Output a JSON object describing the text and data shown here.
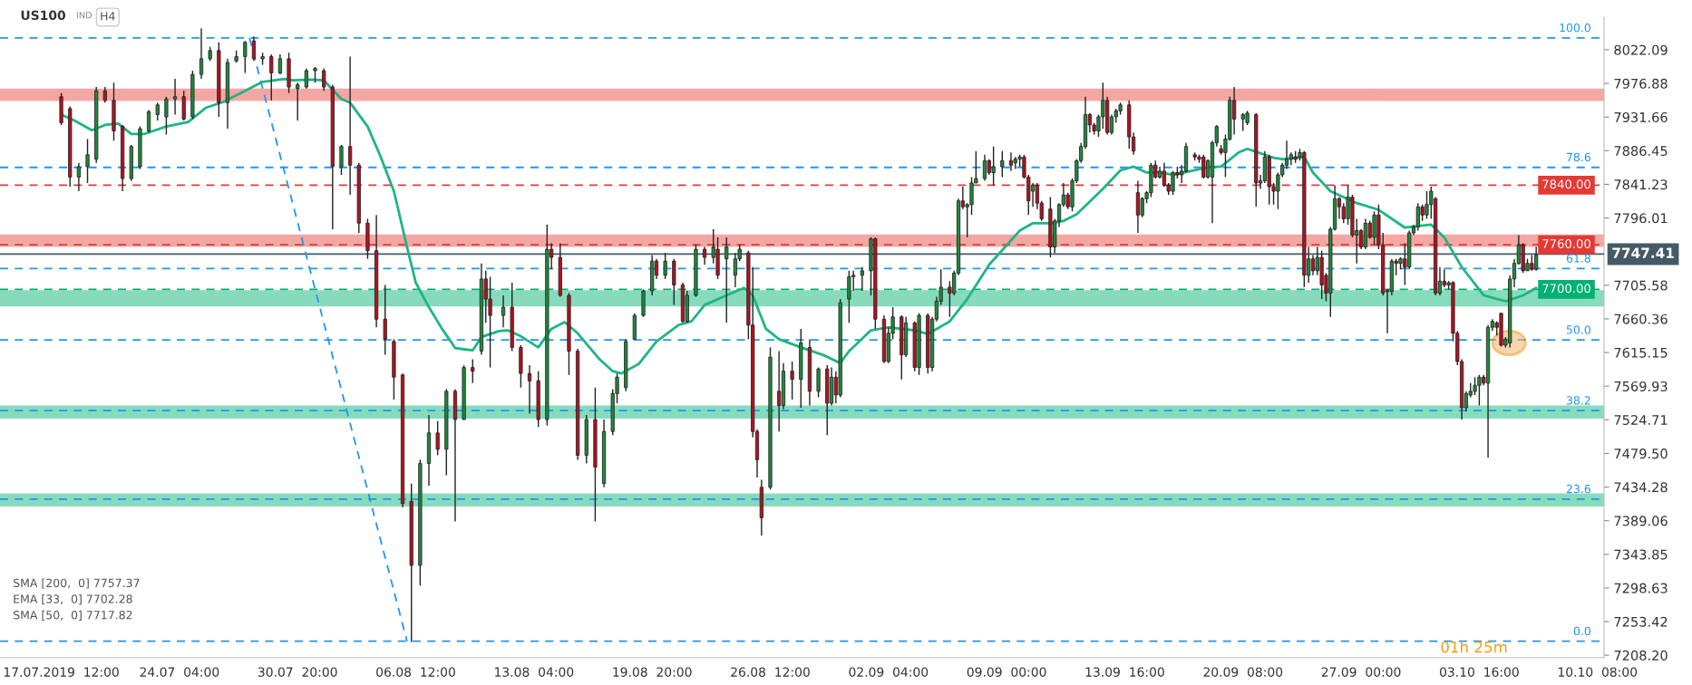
{
  "chart_data": {
    "type": "candlestick",
    "title": "US100",
    "subtitle": "IND",
    "annotations": [
      "SMA [200,  0] 7757.37",
      "EMA [33,  0] 7702.28",
      "SMA [50,  0] 7717.82",
      "H4",
      "01h 25m",
      {
        "text": "100.0",
        "y": 8038
      },
      {
        "text": "78.6",
        "y": 7864
      },
      {
        "text": "61.8",
        "y": 7728
      },
      {
        "text": "50.0",
        "y": 7632
      },
      {
        "text": "38.2",
        "y": 7537
      },
      {
        "text": "23.6",
        "y": 7418
      },
      {
        "text": "0.0",
        "y": 7227
      }
    ],
    "categories": [
      "17.07.2019  12:00",
      null,
      null,
      null,
      null,
      null,
      null,
      null,
      null,
      null,
      null,
      null,
      null,
      null,
      null,
      null,
      null,
      null,
      null,
      null,
      null,
      null,
      null,
      null,
      null,
      null,
      null,
      "24.07  04:00",
      null,
      null,
      null,
      null,
      null,
      null,
      null,
      null,
      null,
      null,
      null,
      null,
      null,
      null,
      null,
      null,
      null,
      null,
      null,
      null,
      null,
      null,
      null,
      null,
      null,
      null,
      "30.07  20:00",
      null,
      null,
      null,
      null,
      null,
      null,
      null,
      null,
      null,
      null,
      null,
      null,
      null,
      null,
      null,
      null,
      null,
      null,
      null,
      null,
      null,
      null,
      null,
      null,
      null,
      null,
      "06.08  12:00",
      null,
      null,
      null,
      null,
      null,
      null,
      null,
      null,
      null,
      null,
      null,
      null,
      null,
      null,
      null,
      null,
      null,
      null,
      null,
      null,
      null,
      null,
      null,
      null,
      null,
      null,
      "13.08  04:00",
      null,
      null,
      null,
      null,
      null,
      null,
      null,
      null,
      null,
      null,
      null,
      null,
      null,
      null,
      null,
      null,
      null,
      null,
      null,
      null,
      null,
      null,
      null,
      null,
      null,
      null,
      "19.08  20:00",
      null,
      null,
      null,
      null,
      null,
      null,
      null,
      null,
      null,
      null,
      null,
      null,
      null,
      null,
      null,
      null,
      null,
      null,
      null,
      null,
      null,
      null,
      null,
      null,
      null,
      null,
      "26.08  12:00",
      null,
      null,
      null,
      null,
      null,
      null,
      null,
      null,
      null,
      null,
      null,
      null,
      null,
      null,
      null,
      null,
      null,
      null,
      null,
      null,
      null,
      null,
      null,
      null,
      null,
      null,
      "02.09  04:00",
      null,
      null,
      null,
      null,
      null,
      null,
      null,
      null,
      null,
      null,
      null,
      null,
      null,
      null,
      null,
      null,
      null,
      null,
      null,
      null,
      null,
      null,
      null,
      null,
      null,
      null,
      "09.09  00:00",
      null,
      null,
      null,
      null,
      null,
      null,
      null,
      null,
      null,
      null,
      null,
      null,
      null,
      null,
      null,
      null,
      null,
      null,
      null,
      null,
      null,
      null,
      null,
      null,
      null,
      null,
      "13.09  16:00",
      null,
      null,
      null,
      null,
      null,
      null,
      null,
      null,
      null,
      null,
      null,
      null,
      null,
      null,
      null,
      null,
      null,
      null,
      null,
      null,
      null,
      null,
      null,
      null,
      null,
      null,
      "20.09  08:00",
      null,
      null,
      null,
      null,
      null,
      null,
      null,
      null,
      null,
      null,
      null,
      null,
      null,
      null,
      null,
      null,
      null,
      null,
      null,
      null,
      null,
      null,
      null,
      null,
      null,
      null,
      "27.09  00:00",
      null,
      null,
      null,
      null,
      null,
      null,
      null,
      null,
      null,
      null,
      null,
      null,
      null,
      null,
      null,
      null,
      null,
      null,
      null,
      null,
      null,
      null,
      null,
      null,
      null,
      null,
      "03.10  16:00",
      null,
      null,
      null,
      null,
      null,
      null,
      null,
      null,
      null,
      null,
      null,
      null,
      null,
      null,
      null,
      null,
      null,
      null,
      null,
      null,
      null,
      null,
      null,
      null,
      null,
      null,
      "10.10  08:00",
      null
    ],
    "ohlc": [
      [
        7959,
        7964,
        7921,
        7924
      ],
      null,
      [
        7943,
        7946,
        7838,
        7851
      ],
      null,
      [
        7851,
        7870,
        7832,
        7865
      ],
      null,
      [
        7865,
        7902,
        7843,
        7881
      ],
      null,
      [
        7875,
        7972,
        7870,
        7967
      ],
      null,
      [
        7967,
        7972,
        7951,
        7954
      ],
      null,
      [
        7954,
        7978,
        7900,
        7913
      ],
      null,
      [
        7919,
        7921,
        7832,
        7849
      ],
      null,
      [
        7849,
        7894,
        7846,
        7892
      ],
      null,
      [
        7865,
        7919,
        7862,
        7916
      ],
      null,
      [
        7913,
        7941,
        7911,
        7939
      ],
      null,
      [
        7935,
        7951,
        7927,
        7948
      ],
      null,
      [
        7932,
        7959,
        7908,
        7956
      ],
      null,
      [
        7956,
        7983,
        7935,
        7959
      ],
      null,
      [
        7959,
        7967,
        7927,
        7929
      ],
      null,
      [
        7932,
        7994,
        7929,
        7989
      ],
      null,
      [
        7989,
        8051,
        7983,
        8010
      ],
      null,
      [
        8010,
        8026,
        8007,
        8021
      ],
      null,
      [
        8021,
        8032,
        7932,
        7951
      ],
      null,
      [
        7951,
        8010,
        7916,
        8005
      ],
      null,
      [
        8007,
        8021,
        8005,
        8013
      ],
      null,
      [
        8013,
        8034,
        7991,
        8032
      ],
      null,
      [
        8034,
        8040,
        8007,
        8010
      ],
      null,
      [
        8010,
        8018,
        8002,
        8013
      ],
      null,
      [
        8013,
        8016,
        7954,
        7991
      ],
      null,
      [
        7991,
        8016,
        7989,
        8010
      ],
      null,
      [
        8010,
        8018,
        7964,
        7972
      ],
      null,
      [
        7970,
        7978,
        7927,
        7975
      ],
      null,
      [
        7972,
        7997,
        7970,
        7994
      ],
      null,
      [
        7994,
        7999,
        7978,
        7997
      ],
      null,
      [
        7994,
        7997,
        7967,
        7972
      ],
      null,
      [
        7972,
        7975,
        7781,
        7865
      ],
      null,
      [
        7865,
        7894,
        7854,
        7892
      ],
      null,
      [
        7892,
        8013,
        7827,
        7867
      ],
      null,
      [
        7867,
        7870,
        7776,
        7789
      ],
      null,
      [
        7789,
        7795,
        7741,
        7752
      ],
      null,
      [
        7752,
        7800,
        7649,
        7660
      ],
      null,
      [
        7660,
        7706,
        7612,
        7633
      ],
      null,
      [
        7630,
        7633,
        7552,
        7582
      ],
      null,
      [
        7585,
        7587,
        7407,
        7412
      ],
      null,
      [
        7415,
        7439,
        7226,
        7329
      ],
      null,
      [
        7329,
        7471,
        7302,
        7466
      ],
      null,
      [
        7466,
        7531,
        7436,
        7507
      ],
      null,
      [
        7507,
        7523,
        7477,
        7485
      ],
      null,
      [
        7485,
        7566,
        7450,
        7563
      ],
      null,
      [
        7563,
        7566,
        7388,
        7525
      ],
      null,
      [
        7525,
        7598,
        7525,
        7595
      ],
      null,
      [
        7595,
        7606,
        7574,
        7590
      ],
      null,
      [
        7617,
        7735,
        7612,
        7714
      ],
      [
        7714,
        7725,
        7655,
        7687
      ],
      [
        7687,
        7717,
        7595,
        7665
      ],
      null,
      null,
      [
        7665,
        7692,
        7649,
        7676
      ],
      null,
      [
        7676,
        7709,
        7617,
        7622
      ],
      null,
      [
        7622,
        7625,
        7568,
        7587
      ],
      null,
      [
        7587,
        7598,
        7533,
        7577
      ],
      null,
      [
        7577,
        7590,
        7515,
        7525
      ],
      null,
      [
        7525,
        7787,
        7517,
        7754
      ],
      [
        7754,
        7762,
        7727,
        7743
      ],
      null,
      [
        7743,
        7762,
        7690,
        7692
      ],
      null,
      [
        7692,
        7695,
        7585,
        7617
      ],
      null,
      [
        7617,
        7620,
        7471,
        7477
      ],
      null,
      [
        7477,
        7531,
        7466,
        7525
      ],
      null,
      [
        7525,
        7568,
        7388,
        7461
      ],
      null,
      [
        7439,
        7525,
        7434,
        7509
      ],
      null,
      [
        7509,
        7566,
        7504,
        7560
      ],
      [
        7560,
        7587,
        7547,
        7582
      ],
      null,
      [
        7568,
        7633,
        7563,
        7630
      ],
      null,
      [
        7633,
        7668,
        7633,
        7665
      ],
      null,
      [
        7665,
        7700,
        7663,
        7698
      ],
      null,
      [
        7698,
        7746,
        7692,
        7738
      ],
      [
        7738,
        7741,
        7714,
        7719
      ],
      null,
      [
        7719,
        7749,
        7714,
        7738
      ],
      null,
      [
        7738,
        7741,
        7679,
        7706
      ],
      null,
      [
        7706,
        7709,
        7655,
        7657
      ],
      [
        7657,
        7698,
        7655,
        7692
      ],
      null,
      [
        7692,
        7760,
        7690,
        7754
      ],
      null,
      [
        7754,
        7757,
        7733,
        7743
      ],
      null,
      [
        7743,
        7781,
        7735,
        7757
      ],
      [
        7754,
        7770,
        7714,
        7719
      ],
      null,
      [
        7741,
        7770,
        7655,
        7757
      ],
      null,
      [
        7719,
        7749,
        7703,
        7741
      ],
      [
        7741,
        7760,
        7738,
        7754
      ],
      null,
      [
        7749,
        7752,
        7633,
        7652
      ],
      [
        7652,
        7730,
        7501,
        7509
      ],
      [
        7509,
        7512,
        7447,
        7471
      ],
      [
        7434,
        7444,
        7369,
        7393
      ],
      null,
      [
        7434,
        7622,
        7431,
        7609
      ],
      null,
      [
        7563,
        7617,
        7509,
        7544
      ],
      [
        7544,
        7601,
        7539,
        7590
      ],
      null,
      [
        7590,
        7603,
        7552,
        7579
      ],
      null,
      [
        7579,
        7647,
        7541,
        7628
      ],
      null,
      [
        7622,
        7633,
        7544,
        7563
      ],
      null,
      [
        7563,
        7595,
        7555,
        7593
      ],
      null,
      [
        7593,
        7598,
        7504,
        7547
      ],
      [
        7547,
        7595,
        7544,
        7582
      ],
      [
        7582,
        7590,
        7547,
        7558
      ],
      [
        7558,
        7687,
        7555,
        7682
      ],
      null,
      [
        7687,
        7725,
        7655,
        7717
      ],
      [
        7717,
        7725,
        7698,
        7719
      ],
      null,
      [
        7719,
        7730,
        7698,
        7725
      ],
      null,
      [
        7725,
        7770,
        7692,
        7768
      ],
      [
        7768,
        7770,
        7647,
        7660
      ],
      null,
      [
        7660,
        7665,
        7601,
        7603
      ],
      [
        7603,
        7649,
        7601,
        7641
      ],
      [
        7641,
        7676,
        7633,
        7663
      ],
      null,
      [
        7663,
        7665,
        7579,
        7612
      ],
      [
        7612,
        7663,
        7609,
        7655
      ],
      null,
      [
        7655,
        7657,
        7590,
        7595
      ],
      [
        7595,
        7668,
        7585,
        7665
      ],
      null,
      [
        7665,
        7668,
        7587,
        7595
      ],
      [
        7595,
        7663,
        7590,
        7660
      ],
      [
        7660,
        7690,
        7657,
        7684
      ],
      [
        7684,
        7727,
        7679,
        7703
      ],
      null,
      [
        7703,
        7711,
        7663,
        7695
      ],
      [
        7695,
        7725,
        7692,
        7722
      ],
      [
        7722,
        7822,
        7719,
        7819
      ],
      [
        7819,
        7838,
        7808,
        7811
      ],
      [
        7811,
        7816,
        7770,
        7814
      ],
      [
        7814,
        7851,
        7800,
        7843
      ],
      [
        7843,
        7886,
        7843,
        7849
      ],
      null,
      [
        7849,
        7881,
        7846,
        7873
      ],
      [
        7873,
        7875,
        7854,
        7857
      ],
      [
        7857,
        7892,
        7840,
        7865
      ],
      null,
      [
        7865,
        7886,
        7851,
        7873
      ],
      null,
      [
        7873,
        7884,
        7859,
        7867
      ],
      [
        7870,
        7878,
        7862,
        7875
      ],
      [
        7875,
        7881,
        7865,
        7878
      ],
      [
        7878,
        7881,
        7849,
        7851
      ],
      [
        7851,
        7854,
        7800,
        7819
      ],
      [
        7832,
        7843,
        7811,
        7840
      ],
      [
        7840,
        7843,
        7808,
        7816
      ],
      [
        7816,
        7819,
        7792,
        7795
      ],
      null,
      [
        7808,
        7824,
        7743,
        7757
      ],
      [
        7757,
        7795,
        7749,
        7792
      ],
      [
        7792,
        7816,
        7784,
        7814
      ],
      [
        7814,
        7843,
        7811,
        7827
      ],
      [
        7827,
        7830,
        7808,
        7811
      ],
      [
        7811,
        7849,
        7805,
        7846
      ],
      [
        7846,
        7875,
        7843,
        7873
      ],
      [
        7873,
        7897,
        7870,
        7892
      ],
      [
        7892,
        7959,
        7889,
        7935
      ],
      [
        7935,
        7937,
        7911,
        7921
      ],
      [
        7921,
        7924,
        7908,
        7913
      ],
      [
        7913,
        7935,
        7905,
        7932
      ],
      [
        7932,
        7978,
        7916,
        7954
      ],
      [
        7954,
        7959,
        7908,
        7911
      ],
      [
        7911,
        7935,
        7908,
        7932
      ],
      [
        7932,
        7943,
        7924,
        7940
      ],
      [
        7940,
        7951,
        7935,
        7948
      ],
      null,
      [
        7948,
        7954,
        7889,
        7905
      ],
      [
        7905,
        7911,
        7881,
        7886
      ],
      [
        7830,
        7846,
        7776,
        7800
      ],
      [
        7800,
        7824,
        7797,
        7822
      ],
      [
        7822,
        7832,
        7816,
        7830
      ],
      [
        7830,
        7870,
        7824,
        7867
      ],
      [
        7867,
        7873,
        7849,
        7851
      ],
      [
        7851,
        7865,
        7849,
        7859
      ],
      [
        7859,
        7870,
        7838,
        7840
      ],
      [
        7840,
        7843,
        7827,
        7832
      ],
      [
        7832,
        7859,
        7827,
        7857
      ],
      [
        7857,
        7865,
        7849,
        7854
      ],
      [
        7854,
        7867,
        7843,
        7859
      ],
      [
        7859,
        7897,
        7857,
        7892
      ],
      null,
      [
        7881,
        7884,
        7873,
        7878
      ],
      [
        7878,
        7881,
        7870,
        7875
      ],
      [
        7878,
        7881,
        7849,
        7851
      ],
      [
        7851,
        7875,
        7849,
        7873
      ],
      [
        7851,
        7900,
        7789,
        7897
      ],
      [
        7897,
        7921,
        7892,
        7919
      ],
      [
        7889,
        7894,
        7881,
        7884
      ],
      [
        7884,
        7908,
        7851,
        7902
      ],
      [
        7902,
        7959,
        7900,
        7954
      ],
      [
        7954,
        7972,
        7908,
        7929
      ],
      null,
      [
        7929,
        7937,
        7913,
        7935
      ],
      [
        7924,
        7940,
        7921,
        7937
      ],
      null,
      [
        7935,
        7937,
        7811,
        7843
      ],
      [
        7843,
        7854,
        7835,
        7846
      ],
      [
        7846,
        7886,
        7843,
        7878
      ],
      [
        7878,
        7881,
        7814,
        7838
      ],
      [
        7838,
        7843,
        7814,
        7832
      ],
      [
        7832,
        7857,
        7808,
        7854
      ],
      [
        7854,
        7870,
        7851,
        7867
      ],
      [
        7867,
        7900,
        7862,
        7875
      ],
      [
        7875,
        7884,
        7867,
        7881
      ],
      [
        7878,
        7886,
        7870,
        7875
      ],
      [
        7878,
        7889,
        7873,
        7884
      ],
      [
        7884,
        7886,
        7703,
        7719
      ],
      [
        7719,
        7757,
        7709,
        7741
      ],
      [
        7741,
        7746,
        7719,
        7725
      ],
      [
        7725,
        7757,
        7719,
        7743
      ],
      [
        7743,
        7752,
        7687,
        7706
      ],
      [
        7719,
        7722,
        7684,
        7695
      ],
      [
        7695,
        7784,
        7663,
        7781
      ],
      [
        7781,
        7840,
        7779,
        7822
      ],
      [
        7822,
        7824,
        7795,
        7811
      ],
      [
        7811,
        7816,
        7789,
        7795
      ],
      [
        7795,
        7840,
        7787,
        7824
      ],
      [
        7824,
        7827,
        7770,
        7773
      ],
      [
        7773,
        7795,
        7735,
        7779
      ],
      [
        7779,
        7781,
        7754,
        7757
      ],
      [
        7757,
        7795,
        7754,
        7789
      ],
      [
        7789,
        7792,
        7768,
        7770
      ],
      [
        7770,
        7805,
        7760,
        7800
      ],
      [
        7800,
        7814,
        7754,
        7760
      ],
      [
        7760,
        7776,
        7692,
        7695
      ],
      [
        7699,
        7700,
        7641,
        7697
      ],
      [
        7697,
        7741,
        7692,
        7738
      ],
      [
        7738,
        7741,
        7719,
        7735
      ],
      [
        7735,
        7743,
        7727,
        7741
      ],
      [
        7741,
        7762,
        7706,
        7730
      ],
      [
        7730,
        7779,
        7727,
        7776
      ],
      [
        7776,
        7787,
        7773,
        7784
      ],
      [
        7784,
        7816,
        7779,
        7811
      ],
      [
        7811,
        7814,
        7792,
        7800
      ],
      [
        7800,
        7832,
        7795,
        7814
      ],
      [
        7814,
        7838,
        7795,
        7832
      ],
      [
        7822,
        7824,
        7692,
        7695
      ],
      [
        7695,
        7730,
        7692,
        7711
      ],
      [
        7711,
        7727,
        7703,
        7706
      ],
      [
        7706,
        7711,
        7700,
        7709
      ],
      [
        7709,
        7711,
        7630,
        7641
      ],
      [
        7641,
        7644,
        7598,
        7603
      ],
      [
        7603,
        7606,
        7525,
        7541
      ],
      [
        7541,
        7563,
        7536,
        7560
      ],
      [
        7558,
        7574,
        7555,
        7563
      ],
      [
        7563,
        7582,
        7558,
        7571
      ],
      [
        7571,
        7585,
        7544,
        7582
      ],
      [
        7582,
        7585,
        7571,
        7574
      ],
      [
        7574,
        7652,
        7474,
        7649
      ],
      [
        7649,
        7660,
        7644,
        7657
      ],
      [
        7655,
        7657,
        7638,
        7649
      ],
      [
        7668,
        7668,
        7623,
        7625
      ],
      [
        7625,
        7636,
        7622,
        7633
      ],
      [
        7628,
        7719,
        7622,
        7714
      ],
      [
        7714,
        7741,
        7703,
        7735
      ],
      [
        7735,
        7773,
        7733,
        7760
      ],
      [
        7760,
        7762,
        7722,
        7725
      ],
      [
        7725,
        7741,
        7725,
        7735
      ],
      [
        7735,
        7746,
        7725,
        7727
      ],
      [
        7727,
        7757,
        7725,
        7746
      ],
      null,
      null,
      null,
      null,
      null,
      null,
      null,
      null,
      null,
      null,
      null,
      null,
      null,
      null,
      null
    ],
    "series": [
      {
        "type": "line",
        "color": "#1db584",
        "values": [
          7935,
          null,
          null,
          7927,
          null,
          null,
          null,
          7914,
          null,
          null,
          7921,
          null,
          null,
          7923,
          null,
          null,
          7909,
          null,
          null,
          7909,
          null,
          null,
          null,
          null,
          7919,
          null,
          null,
          null,
          null,
          7925,
          null,
          null,
          null,
          7944,
          null,
          null,
          null,
          7952,
          null,
          null,
          null,
          null,
          7967,
          null,
          null,
          null,
          7979,
          null,
          null,
          null,
          null,
          7983,
          null,
          7981,
          null,
          null,
          null,
          7982,
          null,
          null,
          7981,
          null,
          null,
          null,
          7956,
          null,
          7951,
          null,
          null,
          null,
          7919,
          null,
          null,
          7878,
          null,
          null,
          7832,
          null,
          null,
          7757,
          null,
          7709,
          null,
          null,
          7676,
          null,
          null,
          7647,
          null,
          7630,
          7621,
          null,
          null,
          null,
          7618,
          null,
          7636,
          null,
          null,
          null,
          7644,
          null,
          7645,
          null,
          null,
          7637,
          null,
          null,
          null,
          7622,
          null,
          null,
          7647,
          null,
          null,
          7656,
          null,
          null,
          7641,
          null,
          null,
          null,
          null,
          7606,
          null,
          null,
          7590,
          null,
          7587,
          null,
          null,
          null,
          7600,
          null,
          null,
          null,
          7630,
          null,
          null,
          null,
          null,
          7652,
          null,
          null,
          7657,
          null,
          null,
          7679,
          null,
          null,
          null,
          null,
          7692,
          null,
          null,
          null,
          7702,
          null,
          7692,
          null,
          null,
          7647,
          null,
          null,
          7633,
          null,
          null,
          null,
          null,
          7622,
          null,
          null,
          null,
          null,
          7612,
          null,
          null,
          null,
          7601,
          null,
          7617,
          null,
          null,
          null,
          null,
          7645,
          null,
          null,
          null,
          7649,
          null,
          null,
          null,
          null,
          null,
          7645,
          null,
          null,
          7640,
          null,
          null,
          null,
          null,
          7657,
          null,
          null,
          null,
          7687,
          null,
          null,
          null,
          null,
          7733,
          null,
          null,
          null,
          null,
          null,
          null,
          7779,
          null,
          null,
          7789,
          null,
          null,
          null,
          7789,
          null,
          null,
          7792,
          null,
          null,
          7801,
          null,
          null,
          null,
          null,
          null,
          7835,
          null,
          null,
          null,
          7860,
          null,
          null,
          7865,
          null,
          null,
          7857,
          null,
          null,
          7857,
          null,
          null,
          7854,
          null,
          null,
          null,
          7859,
          null,
          null,
          null,
          7864,
          null,
          null,
          7865,
          null,
          null,
          null,
          7884,
          null,
          7889,
          null,
          null,
          null,
          null,
          null,
          7877,
          null,
          7875,
          null,
          null,
          null,
          null,
          7878,
          null,
          7857,
          null,
          null,
          null,
          7832,
          null,
          null,
          null,
          null,
          null,
          7816,
          null,
          null,
          null,
          null,
          7807,
          null,
          null,
          null,
          null,
          null,
          7783,
          null,
          null,
          null,
          null,
          null,
          7787,
          null,
          null,
          7770,
          null,
          null,
          null,
          7730,
          null,
          null,
          null,
          null,
          7692,
          null,
          null,
          null,
          null,
          7684,
          null,
          null,
          null,
          7692,
          null,
          null,
          7702,
          null,
          null,
          null,
          null,
          null,
          null,
          null,
          null,
          null,
          null,
          null,
          null,
          null,
          null,
          null
        ]
      },
      {
        "type": "line",
        "color": "#2196f3",
        "line_style": "dashed",
        "values": [
          null,
          null,
          null,
          null,
          null,
          null,
          null,
          null,
          null,
          null,
          null,
          null,
          null,
          null,
          null,
          null,
          null,
          null,
          null,
          null,
          null,
          null,
          null,
          null,
          null,
          null,
          null,
          null,
          null,
          null,
          null,
          null,
          null,
          null,
          null,
          null,
          null,
          null,
          null,
          null,
          null,
          null,
          null,
          8038,
          null,
          null,
          null,
          null,
          null,
          null,
          null,
          null,
          null,
          null,
          null,
          null,
          null,
          null,
          null,
          null,
          null,
          null,
          null,
          null,
          null,
          null,
          null,
          null,
          null,
          null,
          null,
          null,
          null,
          null,
          null,
          null,
          null,
          null,
          null,
          7227,
          null,
          null,
          null,
          null,
          null,
          null,
          null,
          null,
          null,
          null,
          null,
          null,
          null,
          null,
          null,
          null,
          null,
          null,
          null,
          null,
          null,
          null,
          null,
          null,
          null,
          null,
          null,
          null,
          null,
          null,
          null,
          null,
          null,
          null,
          null,
          null,
          null,
          null,
          null,
          null,
          null,
          null,
          null,
          null,
          null,
          null,
          null,
          null,
          null,
          null,
          null,
          null,
          null,
          null,
          null,
          null,
          null,
          null,
          null,
          null,
          null,
          null,
          null,
          null,
          null,
          null,
          null,
          null,
          null,
          null,
          null,
          null,
          null,
          null,
          null,
          null,
          null,
          null,
          null,
          null,
          null,
          null,
          null,
          null,
          null,
          null,
          null,
          null,
          null,
          null,
          null,
          null,
          null,
          null,
          null,
          null,
          null,
          null,
          null,
          null,
          null,
          null,
          null,
          null,
          null,
          null,
          null,
          null,
          null,
          null,
          null,
          null,
          null,
          null,
          null,
          null,
          null,
          null,
          null,
          null,
          null,
          null,
          null,
          null,
          null,
          null,
          null,
          null,
          null,
          null,
          null,
          null,
          null,
          null,
          null,
          null,
          null,
          null,
          null,
          null,
          null,
          null,
          null,
          null,
          null,
          null,
          null,
          null,
          null,
          null,
          null,
          null,
          null,
          null,
          null,
          null,
          null,
          null,
          null,
          null,
          null,
          null,
          null,
          null,
          null,
          null,
          null,
          null,
          null,
          null,
          null,
          null,
          null,
          null,
          null,
          null,
          null,
          null,
          null,
          null,
          null,
          null,
          null,
          null,
          null,
          null,
          null,
          null,
          null,
          null,
          null,
          null,
          null,
          null,
          null,
          null,
          null,
          null,
          null,
          null,
          null,
          null,
          null,
          null,
          null,
          null,
          null,
          null,
          null,
          null,
          null,
          null,
          null,
          null,
          null,
          null,
          null,
          null,
          null,
          null,
          null,
          null,
          null,
          null,
          null,
          null,
          null,
          null,
          null,
          null,
          null,
          null,
          null,
          null,
          null,
          null,
          null,
          null,
          null,
          null,
          null,
          null,
          null,
          null,
          null,
          null,
          null,
          null,
          null,
          null,
          null,
          null,
          null,
          null,
          null,
          null,
          null,
          null,
          null,
          null,
          null,
          null,
          null,
          null,
          null,
          null,
          null,
          null,
          null,
          null,
          null,
          null,
          null
        ]
      }
    ],
    "ylim": [
      7205,
      8066
    ],
    "yticks": [
      8022.09,
      7976.88,
      7931.66,
      7886.45,
      7841.23,
      7796.01,
      7705.58,
      7660.36,
      7615.15,
      7569.93,
      7524.71,
      {
        "value": 7479.5,
        "label": "7479.50"
      },
      7434.28,
      7389.06,
      7343.85,
      7298.63,
      7253.42,
      {
        "value": 7208.2,
        "label": "7208.20"
      }
    ],
    "bands": [
      {
        "axis": "y",
        "from": 7954,
        "to": 7969,
        "color": "#f08a86"
      },
      {
        "axis": "y",
        "from": 7758,
        "to": 7773,
        "color": "#f08a86"
      },
      {
        "axis": "y",
        "from": 7678,
        "to": 7698,
        "color": "#5fd0a6"
      },
      {
        "axis": "y",
        "from": 7527,
        "to": 7543,
        "color": "#5fd0a6"
      },
      {
        "axis": "y",
        "from": 7409,
        "to": 7425,
        "color": "#5fd0a6"
      }
    ],
    "ref_lines": [
      {
        "axis": "y",
        "value": 8038,
        "color": "#2196f3",
        "line_style": "dashed"
      },
      {
        "axis": "y",
        "value": 7864,
        "color": "#2196f3",
        "line_style": "dashed"
      },
      {
        "axis": "y",
        "value": 7728,
        "color": "#2196f3",
        "line_style": "dashed"
      },
      {
        "axis": "y",
        "value": 7632,
        "color": "#2196f3",
        "line_style": "dashed"
      },
      {
        "axis": "y",
        "value": 7537,
        "color": "#2196f3",
        "line_style": "dashed"
      },
      {
        "axis": "y",
        "value": 7418,
        "color": "#2196f3",
        "line_style": "dashed"
      },
      {
        "axis": "y",
        "value": 7227,
        "color": "#2196f3",
        "line_style": "dashed"
      },
      {
        "axis": "y",
        "value": 7840,
        "label": "7840.00",
        "color": "#e53935",
        "line_style": "dashed"
      },
      {
        "axis": "y",
        "value": 7760,
        "label": "7760.00",
        "color": "#e53935",
        "line_style": "dashed"
      },
      {
        "axis": "y",
        "value": 7700,
        "label": "7700.00",
        "color": "#00b074",
        "line_style": "dashed"
      },
      {
        "axis": "y",
        "value": 7747.41,
        "label": "7747.41",
        "color": "#455a64",
        "line_style": "solid"
      }
    ],
    "grid": false
  }
}
